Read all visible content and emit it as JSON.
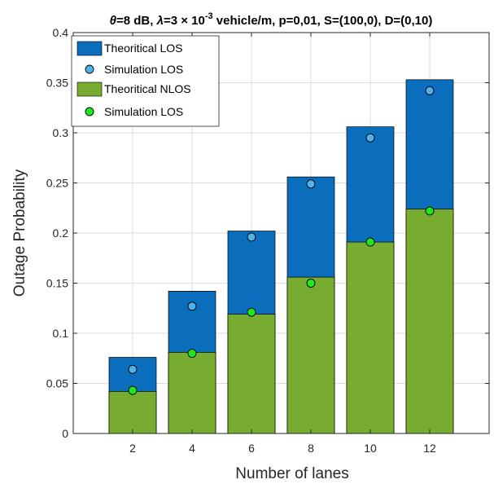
{
  "chart_data": {
    "type": "bar",
    "title_parts": {
      "theta_sym": "θ",
      "t1": "=8 dB, ",
      "lambda_sym": "λ",
      "t2": "=3 × 10",
      "exp": "-3",
      "t3": "  vehicle/m, p=0,01, S=(100,0), D=(0,10)"
    },
    "xlabel": "Number of lanes",
    "ylabel": "Outage Probability",
    "categories": [
      "2",
      "4",
      "6",
      "8",
      "10",
      "12"
    ],
    "xlim": [
      0,
      14
    ],
    "ylim": [
      0,
      0.4
    ],
    "yticks": [
      0,
      0.05,
      0.1,
      0.15,
      0.2,
      0.25,
      0.3,
      0.35,
      0.4
    ],
    "ytick_labels": [
      "0",
      "0.05",
      "0.1",
      "0.15",
      "0.2",
      "0.25",
      "0.3",
      "0.35",
      "0.4"
    ],
    "grid": true,
    "legend_position": "top-left",
    "series": [
      {
        "name": "Theoritical LOS",
        "kind": "bar",
        "color": "#0a6ebd",
        "values": [
          0.076,
          0.142,
          0.202,
          0.256,
          0.306,
          0.353
        ]
      },
      {
        "name": "Simulation LOS",
        "kind": "marker",
        "color": "#4fb3e8",
        "values": [
          0.064,
          0.127,
          0.196,
          0.249,
          0.295,
          0.342
        ]
      },
      {
        "name": "Theoritical NLOS",
        "kind": "bar",
        "color": "#77ac30",
        "values": [
          0.042,
          0.081,
          0.119,
          0.156,
          0.191,
          0.224
        ]
      },
      {
        "name": "Simulation LOS",
        "kind": "marker",
        "color": "#1ee81e",
        "values": [
          0.043,
          0.08,
          0.121,
          0.15,
          0.191,
          0.222
        ]
      }
    ]
  }
}
